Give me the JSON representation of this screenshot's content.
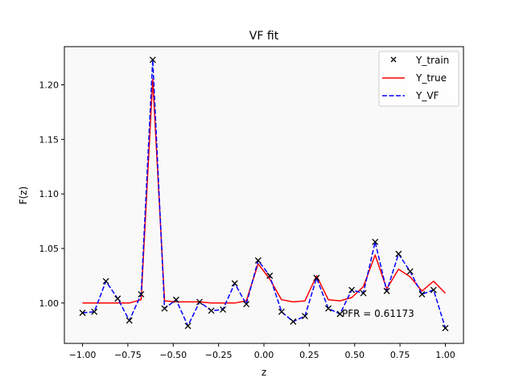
{
  "chart_data": {
    "type": "line",
    "title": "VF fit",
    "xlabel": "z",
    "ylabel": "F(z)",
    "xlim": [
      -1.1,
      1.1
    ],
    "ylim": [
      0.963,
      1.235
    ],
    "xticks": [
      "−1.00",
      "−0.75",
      "−0.50",
      "−0.25",
      "0.00",
      "0.25",
      "0.50",
      "0.75",
      "1.00"
    ],
    "xtick_values": [
      -1.0,
      -0.75,
      -0.5,
      -0.25,
      0.0,
      0.25,
      0.5,
      0.75,
      1.0
    ],
    "yticks": [
      "1.00",
      "1.05",
      "1.10",
      "1.15",
      "1.20"
    ],
    "ytick_values": [
      1.0,
      1.05,
      1.1,
      1.15,
      1.2
    ],
    "grid": false,
    "legend_position": "top-right",
    "plot_background": "#f9f9f9",
    "x": [
      -1.0,
      -0.935,
      -0.871,
      -0.806,
      -0.742,
      -0.677,
      -0.613,
      -0.548,
      -0.484,
      -0.419,
      -0.355,
      -0.29,
      -0.226,
      -0.161,
      -0.097,
      -0.032,
      0.032,
      0.097,
      0.161,
      0.226,
      0.29,
      0.355,
      0.419,
      0.484,
      0.548,
      0.613,
      0.677,
      0.742,
      0.806,
      0.871,
      0.935,
      1.0
    ],
    "series": [
      {
        "name": "Y_train",
        "style": "markers-x",
        "color": "#000000",
        "values": [
          0.991,
          0.992,
          1.02,
          1.004,
          0.984,
          1.008,
          1.223,
          0.995,
          1.003,
          0.979,
          1.001,
          0.993,
          0.994,
          1.018,
          0.999,
          1.039,
          1.025,
          0.992,
          0.983,
          0.988,
          1.023,
          0.995,
          0.99,
          1.012,
          1.009,
          1.056,
          1.011,
          1.045,
          1.029,
          1.008,
          1.012,
          0.977
        ]
      },
      {
        "name": "Y_true",
        "style": "solid",
        "color": "#ff0000",
        "values": [
          1.0,
          1.0,
          1.0,
          1.0,
          1.0,
          1.003,
          1.205,
          1.002,
          1.001,
          1.001,
          1.001,
          1.0,
          1.0,
          1.0,
          1.002,
          1.036,
          1.022,
          1.003,
          1.001,
          1.002,
          1.025,
          1.003,
          1.002,
          1.005,
          1.015,
          1.044,
          1.013,
          1.031,
          1.024,
          1.011,
          1.02,
          1.009
        ]
      },
      {
        "name": "Y_VF",
        "style": "dashed",
        "color": "#0000ff",
        "values": [
          0.991,
          0.992,
          1.02,
          1.004,
          0.984,
          1.008,
          1.223,
          0.995,
          1.003,
          0.979,
          1.001,
          0.993,
          0.994,
          1.018,
          0.999,
          1.039,
          1.025,
          0.992,
          0.983,
          0.988,
          1.023,
          0.995,
          0.99,
          1.012,
          1.009,
          1.056,
          1.011,
          1.045,
          1.029,
          1.008,
          1.012,
          0.977
        ]
      }
    ],
    "annotation": "PFR = 0.61173"
  }
}
